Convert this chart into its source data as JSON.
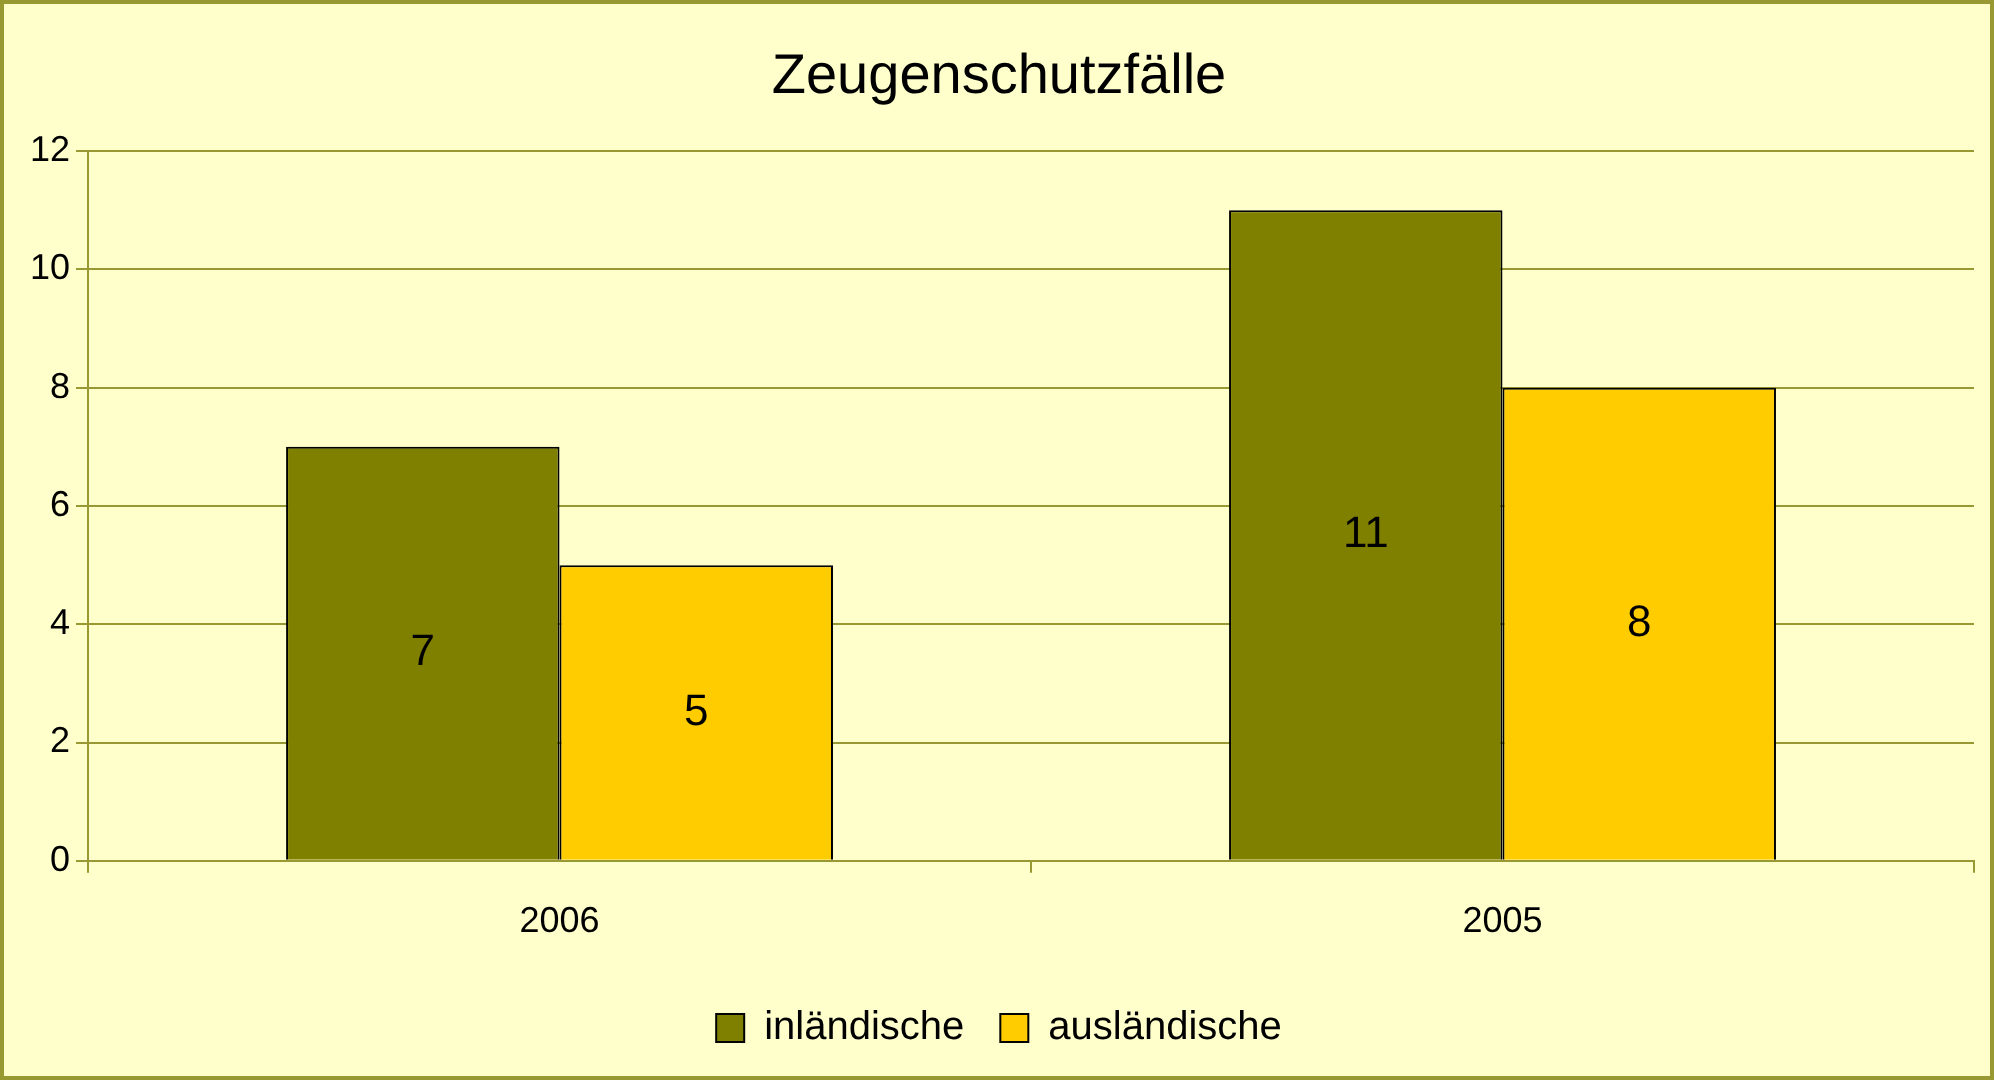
{
  "chart_data": {
    "type": "bar",
    "title": "Zeugenschutzfälle",
    "categories": [
      "2006",
      "2005"
    ],
    "series": [
      {
        "name": "inländische",
        "color": "#808000",
        "values": [
          7,
          11
        ]
      },
      {
        "name": "ausländische",
        "color": "#ffcc00",
        "values": [
          5,
          8
        ]
      }
    ],
    "ylim": [
      0,
      12
    ],
    "yticks": [
      0,
      2,
      4,
      6,
      8,
      10,
      12
    ],
    "grid": "y",
    "legend": "bottom",
    "data_labels": true
  }
}
